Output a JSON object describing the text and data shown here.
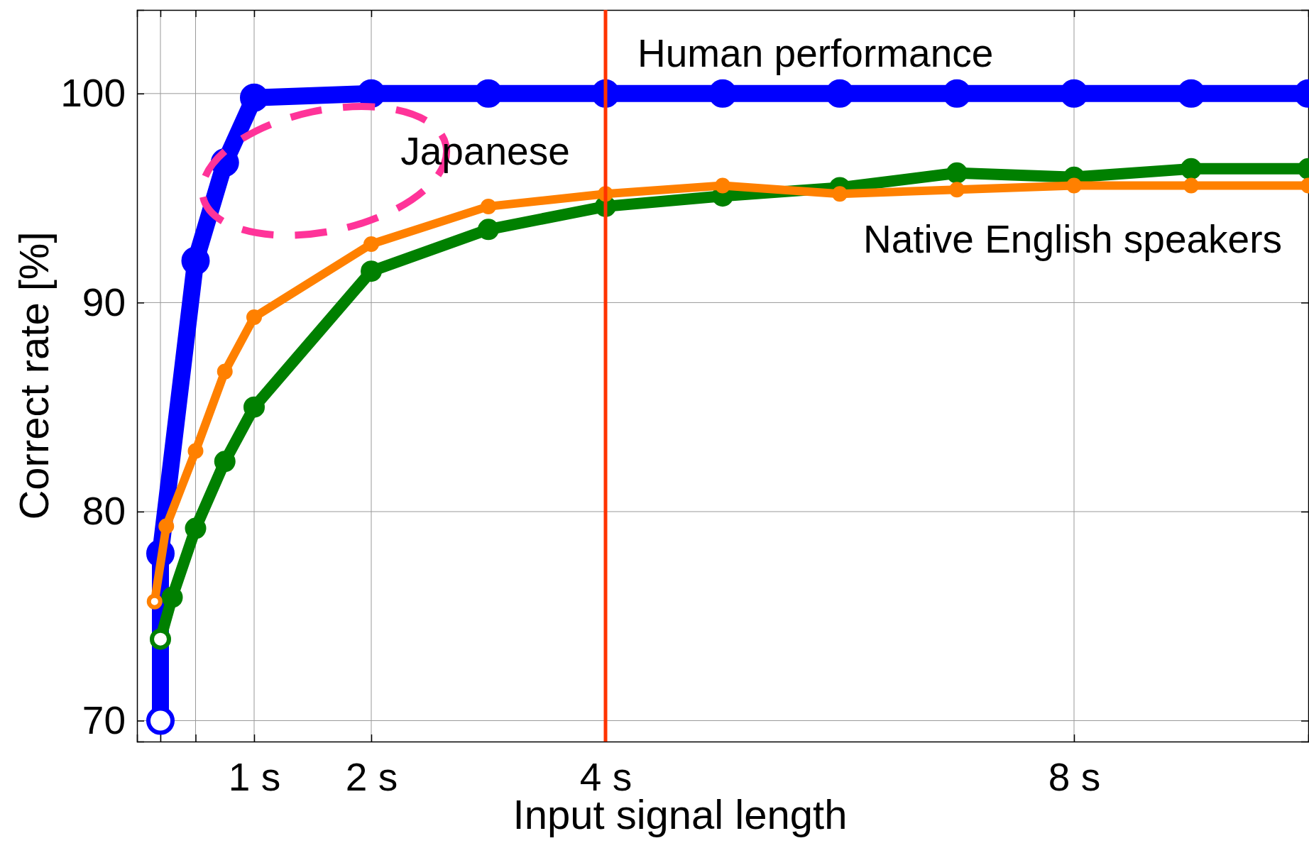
{
  "chart_data": {
    "type": "line",
    "xlabel": "Input signal length",
    "ylabel": "Correct rate [%]",
    "xlim": [
      0,
      10
    ],
    "ylim": [
      69,
      104
    ],
    "xticks": [
      {
        "value": 0.2,
        "label": null
      },
      {
        "value": 0.5,
        "label": null
      },
      {
        "value": 1,
        "label": "1 s"
      },
      {
        "value": 2,
        "label": "2 s"
      },
      {
        "value": 4,
        "label": "4 s"
      },
      {
        "value": 8,
        "label": "8 s"
      }
    ],
    "yticks": [
      70,
      80,
      90,
      100
    ],
    "grid": true,
    "marker": "circle",
    "line_style": "solid",
    "series": [
      {
        "color": "#0000ff",
        "x": [
          0.2,
          0.2,
          0.5,
          0.75,
          1,
          2,
          3,
          4,
          5,
          6,
          7,
          8,
          9,
          10
        ],
        "values": [
          70,
          78,
          92,
          96.7,
          99.8,
          100,
          100,
          100,
          100,
          100,
          100,
          100,
          100,
          100
        ]
      },
      {
        "name": "Japanese",
        "color": "#ff8000",
        "x": [
          0.15,
          0.25,
          0.5,
          0.75,
          1,
          2,
          3,
          4,
          5,
          6,
          7,
          8,
          9,
          10
        ],
        "values": [
          75.7,
          79.3,
          82.9,
          86.7,
          89.3,
          92.8,
          94.6,
          95.2,
          95.6,
          95.2,
          95.4,
          95.6,
          95.6,
          95.6
        ]
      },
      {
        "name": "Native English speakers",
        "color": "#008000",
        "x": [
          0.2,
          0.3,
          0.5,
          0.75,
          1,
          2,
          3,
          4,
          5,
          6,
          7,
          8,
          9,
          10
        ],
        "values": [
          73.9,
          75.9,
          79.2,
          82.4,
          85,
          91.5,
          93.5,
          94.6,
          95.1,
          95.5,
          96.2,
          96,
          96.4,
          96.4
        ]
      }
    ],
    "ref_lines": [
      {
        "axis": "x",
        "value": 4,
        "label": "Human performance",
        "color": "#ff3300"
      }
    ]
  }
}
